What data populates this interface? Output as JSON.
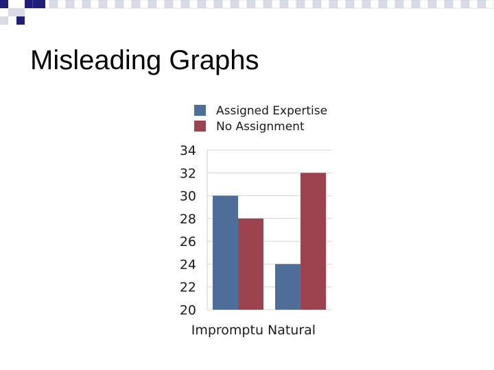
{
  "slide": {
    "title": "Misleading Graphs",
    "deco_colors": [
      "#1f1f7a",
      "#d9dbe6"
    ]
  },
  "chart_data": {
    "type": "bar",
    "title": "",
    "xlabel": "",
    "ylabel": "",
    "categories": [
      "Impromptu",
      "Natural"
    ],
    "series": [
      {
        "name": "Assigned Expertise",
        "color": "#4e6e9a",
        "values": [
          30,
          24
        ]
      },
      {
        "name": "No Assignment",
        "color": "#9c434f",
        "values": [
          28,
          32
        ]
      }
    ],
    "ylim": [
      20,
      34
    ],
    "yticks": [
      "34",
      "32",
      "30",
      "28",
      "26",
      "24",
      "22",
      "20"
    ],
    "grid": true,
    "legend_position": "top-left"
  }
}
